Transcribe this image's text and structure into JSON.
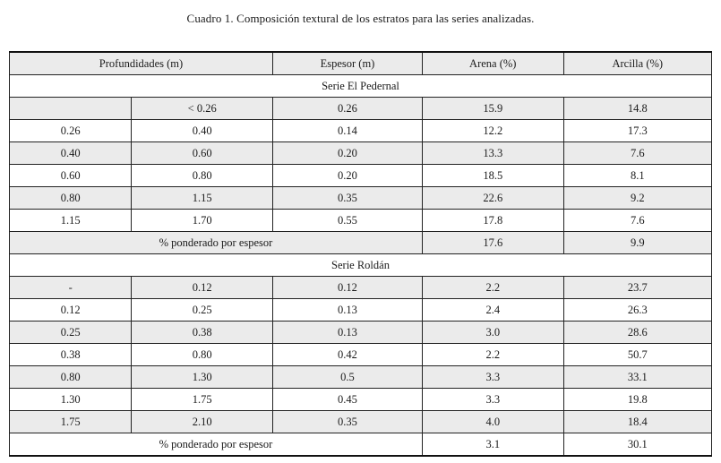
{
  "title": "Cuadro 1. Composición textural de los estratos para las series analizadas.",
  "table": {
    "headers": [
      "Profundidades (m)",
      "Espesor (m)",
      "Arena (%)",
      "Arcilla (%)"
    ],
    "sections": [
      {
        "name": "Serie El Pedernal",
        "rows": [
          [
            "",
            "< 0.26",
            "0.26",
            "15.9",
            "14.8"
          ],
          [
            "0.26",
            "0.40",
            "0.14",
            "12.2",
            "17.3"
          ],
          [
            "0.40",
            "0.60",
            "0.20",
            "13.3",
            "7.6"
          ],
          [
            "0.60",
            "0.80",
            "0.20",
            "18.5",
            "8.1"
          ],
          [
            "0.80",
            "1.15",
            "0.35",
            "22.6",
            "9.2"
          ],
          [
            "1.15",
            "1.70",
            "0.55",
            "17.8",
            "7.6"
          ]
        ],
        "summary": {
          "label": "% ponderado por espesor",
          "arena": "17.6",
          "arcilla": "9.9"
        }
      },
      {
        "name": "Serie Roldán",
        "rows": [
          [
            "-",
            "0.12",
            "0.12",
            "2.2",
            "23.7"
          ],
          [
            "0.12",
            "0.25",
            "0.13",
            "2.4",
            "26.3"
          ],
          [
            "0.25",
            "0.38",
            "0.13",
            "3.0",
            "28.6"
          ],
          [
            "0.38",
            "0.80",
            "0.42",
            "2.2",
            "50.7"
          ],
          [
            "0.80",
            "1.30",
            "0.5",
            "3.3",
            "33.1"
          ],
          [
            "1.30",
            "1.75",
            "0.45",
            "3.3",
            "19.8"
          ],
          [
            "1.75",
            "2.10",
            "0.35",
            "4.0",
            "18.4"
          ]
        ],
        "summary": {
          "label": "% ponderado por espesor",
          "arena": "3.1",
          "arcilla": "30.1"
        }
      }
    ]
  },
  "colors": {
    "row_alt_bg": "#ebebeb",
    "border": "#222222",
    "text": "#1b1b1b"
  }
}
